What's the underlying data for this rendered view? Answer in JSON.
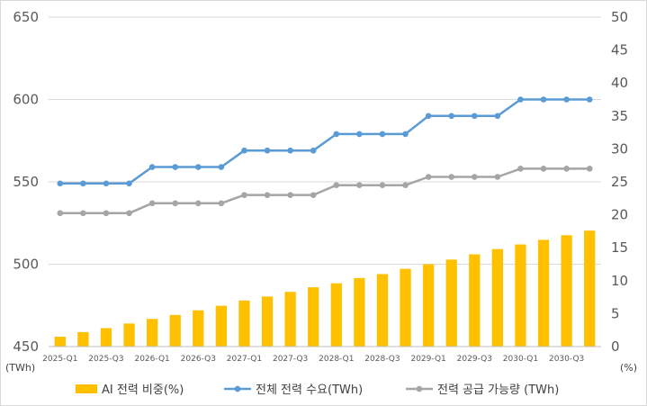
{
  "chart_data": {
    "type": "bar+line",
    "categories": [
      "2025-Q1",
      "2025-Q2",
      "2025-Q3",
      "2025-Q4",
      "2026-Q1",
      "2026-Q2",
      "2026-Q3",
      "2026-Q4",
      "2027-Q1",
      "2027-Q2",
      "2027-Q3",
      "2027-Q4",
      "2028-Q1",
      "2028-Q2",
      "2028-Q3",
      "2028-Q4",
      "2029-Q1",
      "2029-Q2",
      "2029-Q3",
      "2029-Q4",
      "2030-Q1",
      "2030-Q2",
      "2030-Q3",
      "2030-Q4"
    ],
    "x_tick_labels": [
      "2025-Q1",
      "2025-Q3",
      "2026-Q1",
      "2026-Q3",
      "2027-Q1",
      "2027-Q3",
      "2028-Q1",
      "2028-Q3",
      "2029-Q1",
      "2029-Q3",
      "2030-Q1",
      "2030-Q3"
    ],
    "left_axis": {
      "unit": "(TWh)",
      "ylim": [
        450,
        650
      ],
      "ticks": [
        450,
        500,
        550,
        600,
        650
      ]
    },
    "right_axis": {
      "unit": "(%)",
      "ylim": [
        0,
        50
      ],
      "ticks": [
        0,
        5,
        10,
        15,
        20,
        25,
        30,
        35,
        40,
        45,
        50
      ]
    },
    "series": [
      {
        "name": "AI 전력 비중(%)",
        "type": "bar",
        "axis": "right",
        "color": "#FFC000",
        "values": [
          1.5,
          2.2,
          2.8,
          3.5,
          4.2,
          4.8,
          5.5,
          6.2,
          7.0,
          7.6,
          8.3,
          9.0,
          9.6,
          10.4,
          11.0,
          11.8,
          12.5,
          13.2,
          14.0,
          14.8,
          15.5,
          16.2,
          16.9,
          17.6
        ]
      },
      {
        "name": "전체 전력 수요(TWh)",
        "type": "line",
        "axis": "left",
        "color": "#5B9BD5",
        "values": [
          549,
          549,
          549,
          549,
          559,
          559,
          559,
          559,
          569,
          569,
          569,
          569,
          579,
          579,
          579,
          579,
          590,
          590,
          590,
          590,
          600,
          600,
          600,
          600
        ]
      },
      {
        "name": "전력 공급 가능량 (TWh)",
        "type": "line",
        "axis": "left",
        "color": "#A5A5A5",
        "values": [
          531,
          531,
          531,
          531,
          537,
          537,
          537,
          537,
          542,
          542,
          542,
          542,
          548,
          548,
          548,
          548,
          553,
          553,
          553,
          553,
          558,
          558,
          558,
          558
        ]
      }
    ],
    "legend_position": "bottom",
    "grid": "horizontal"
  }
}
